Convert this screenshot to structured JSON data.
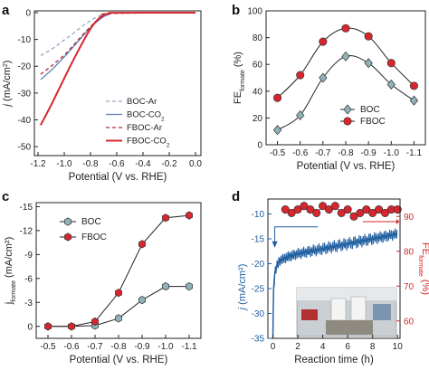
{
  "colors": {
    "boc": "#9bb3c7",
    "boc_marker": "#8fb3b8",
    "fboc": "#c8262d",
    "fboc_marker": "#d9262e",
    "axis": "#222222",
    "right_axis": "#d62728",
    "time_curve": "#1f5fa0"
  },
  "panel_labels": {
    "a": "a",
    "b": "b",
    "c": "c",
    "d": "d"
  },
  "inset_photo": {
    "kind": "photograph-of-electrochemical-cell",
    "caption": ""
  },
  "chart_data": [
    {
      "id": "a",
      "type": "line",
      "xlabel": "Potential (V vs. RHE)",
      "ylabel": "j (mA/cm²)",
      "ylabel_parts": {
        "italic": "j",
        "rest": " (mA/cm",
        "sup": "2",
        "end": ")"
      },
      "xlim": [
        -1.2,
        0.0
      ],
      "ylim": [
        -52,
        0
      ],
      "xticks": [
        -1.2,
        -1.0,
        -0.8,
        -0.6,
        -0.4,
        -0.2,
        0.0
      ],
      "xtick_labels": [
        "-1.2",
        "-1.0",
        "-0.8",
        "-0.6",
        "-0.4",
        "-0.2",
        "0.0"
      ],
      "yticks": [
        0,
        -10,
        -20,
        -30,
        -40,
        -50
      ],
      "ytick_labels": [
        "0",
        "-10",
        "-20",
        "-30",
        "-40",
        "-50"
      ],
      "legend_position": "bottom-right",
      "series": [
        {
          "name": "BOC-Ar",
          "label_main": "BOC-Ar",
          "label_sub": "",
          "color": "#8fa8c8",
          "dash": "4,3",
          "width": 1.3,
          "x": [
            -1.18,
            -1.1,
            -1.0,
            -0.95,
            -0.9,
            -0.85,
            -0.8,
            -0.75,
            -0.7,
            -0.65,
            -0.6,
            0.0
          ],
          "y": [
            -16,
            -13.8,
            -10.2,
            -8.4,
            -6.5,
            -4.6,
            -3.0,
            -1.6,
            -0.6,
            -0.2,
            -0.05,
            0
          ]
        },
        {
          "name": "BOC-CO2",
          "label_main": "BOC-CO",
          "label_sub": "2",
          "color": "#5c7fb0",
          "dash": "",
          "width": 1.3,
          "x": [
            -1.18,
            -1.1,
            -1.0,
            -0.95,
            -0.9,
            -0.85,
            -0.8,
            -0.75,
            -0.7,
            -0.65,
            -0.6,
            0.0
          ],
          "y": [
            -25,
            -21.5,
            -16.5,
            -13.8,
            -11,
            -8.2,
            -5.6,
            -3.3,
            -1.5,
            -0.5,
            -0.1,
            0
          ]
        },
        {
          "name": "FBOC-Ar",
          "label_main": "FBOC-Ar",
          "label_sub": "",
          "color": "#b3262c",
          "dash": "4,3",
          "width": 1.3,
          "x": [
            -1.18,
            -1.1,
            -1.0,
            -0.95,
            -0.9,
            -0.85,
            -0.8,
            -0.75,
            -0.7,
            -0.65,
            0.0
          ],
          "y": [
            -23,
            -20,
            -15.8,
            -13.2,
            -10.5,
            -7.8,
            -5.2,
            -3.0,
            -1.2,
            -0.3,
            0
          ]
        },
        {
          "name": "FBOC-CO2",
          "label_main": "FBOC-CO",
          "label_sub": "2",
          "color": "#d8262d",
          "dash": "",
          "width": 2,
          "x": [
            -1.18,
            -1.1,
            -1.05,
            -1.0,
            -0.95,
            -0.9,
            -0.85,
            -0.8,
            -0.75,
            -0.7,
            -0.65,
            -0.6,
            0.0
          ],
          "y": [
            -42,
            -34.5,
            -29.5,
            -24.5,
            -19.5,
            -14.8,
            -10.2,
            -6.0,
            -2.8,
            -0.9,
            -0.2,
            -0.05,
            0
          ]
        }
      ]
    },
    {
      "id": "b",
      "type": "line",
      "xlabel": "Potential (V vs. RHE)",
      "ylabel": "FE formate (%)",
      "ylabel_parts": {
        "main": "FE",
        "sub": "formate",
        "end": " (%)"
      },
      "categories": [
        "-0.5",
        "-0.6",
        "-0.7",
        "-0.8",
        "-0.9",
        "-1.0",
        "-1.1"
      ],
      "x": [
        -0.5,
        -0.6,
        -0.7,
        -0.8,
        -0.9,
        -1.0,
        -1.1
      ],
      "xlim": [
        -0.45,
        -1.15
      ],
      "ylim": [
        0,
        100
      ],
      "yticks": [
        0,
        20,
        40,
        60,
        80,
        100
      ],
      "ytick_labels": [
        "0",
        "20",
        "40",
        "60",
        "80",
        "100"
      ],
      "legend_position": "bottom-right",
      "series": [
        {
          "name": "BOC",
          "marker": "diamond",
          "values": [
            11,
            22,
            50,
            66,
            61,
            45,
            33
          ]
        },
        {
          "name": "FBOC",
          "marker": "circle",
          "values": [
            35,
            52,
            77,
            87,
            81,
            61,
            44
          ]
        }
      ]
    },
    {
      "id": "c",
      "type": "line",
      "xlabel": "Potential (V vs. RHE)",
      "ylabel": "j formate (mA/cm²)",
      "ylabel_parts": {
        "main": "j",
        "sub": "formate",
        "end": " (mA/cm²)"
      },
      "categories": [
        "-0.5",
        "-0.6",
        "-0.7",
        "-0.8",
        "-0.9",
        "-1.0",
        "-1.1"
      ],
      "x": [
        -0.5,
        -0.6,
        -0.7,
        -0.8,
        -0.9,
        -1.0,
        -1.1
      ],
      "xlim": [
        -0.45,
        -1.15
      ],
      "ylim": [
        1.5,
        -15.5
      ],
      "yticks": [
        0,
        -3,
        -6,
        -9,
        -12,
        -15
      ],
      "ytick_labels": [
        "0",
        "-3",
        "-6",
        "-9",
        "-12",
        "-15"
      ],
      "legend_position": "top-left",
      "series": [
        {
          "name": "BOC",
          "marker": "hexagon",
          "values": [
            0,
            0,
            -0.1,
            -1.0,
            -3.3,
            -5.0,
            -5.0
          ]
        },
        {
          "name": "FBOC",
          "marker": "hexagon",
          "values": [
            0,
            0,
            -0.6,
            -4.2,
            -10.3,
            -13.6,
            -13.9
          ]
        }
      ]
    },
    {
      "id": "d",
      "type": "line",
      "xlabel": "Reaction time (h)",
      "ylabel": "j (mA/cm²)",
      "ylabel_parts": {
        "italic": "j",
        "rest": " (mA/cm²)"
      },
      "ylabel_right": "FE formate (%)",
      "ylabel_right_parts": {
        "main": "FE",
        "sub": "formate",
        "end": " (%)"
      },
      "xlim": [
        -0.4,
        10.2
      ],
      "xticks": [
        0,
        2,
        4,
        6,
        8,
        10
      ],
      "xtick_labels": [
        "0",
        "2",
        "4",
        "6",
        "8",
        "10"
      ],
      "ylim": [
        -35,
        -7
      ],
      "yticks": [
        -10,
        -15,
        -20,
        -25,
        -30,
        -35
      ],
      "ytick_labels": [
        "-10",
        "-15",
        "-20",
        "-25",
        "-30",
        "-35"
      ],
      "ylim_right": [
        55,
        95
      ],
      "yticks_right": [
        60,
        70,
        80,
        90
      ],
      "ytick_labels_right": [
        "60",
        "70",
        "80",
        "90"
      ],
      "series": [
        {
          "name": "j",
          "axis": "left",
          "kind": "current-transient",
          "x": [
            0,
            0.05,
            0.15,
            0.3,
            0.5,
            1,
            2,
            3,
            4,
            5,
            6,
            7,
            8,
            9,
            10
          ],
          "y": [
            -35,
            -26,
            -22,
            -20.5,
            -19.5,
            -18.8,
            -18.0,
            -17.5,
            -17.0,
            -16.5,
            -16.0,
            -15.5,
            -15.0,
            -14.5,
            -14.0
          ]
        },
        {
          "name": "FE formate",
          "axis": "right",
          "marker": "circle",
          "x": [
            1,
            1.5,
            2,
            2.5,
            3,
            3.5,
            4,
            4.5,
            5,
            5.5,
            6,
            6.5,
            7,
            7.5,
            8,
            8.5,
            9,
            9.5,
            10
          ],
          "values": [
            92,
            91,
            92,
            93,
            92,
            91,
            93,
            92,
            93,
            91,
            92,
            90,
            91,
            92,
            91,
            92,
            91,
            92,
            92
          ]
        }
      ]
    }
  ]
}
